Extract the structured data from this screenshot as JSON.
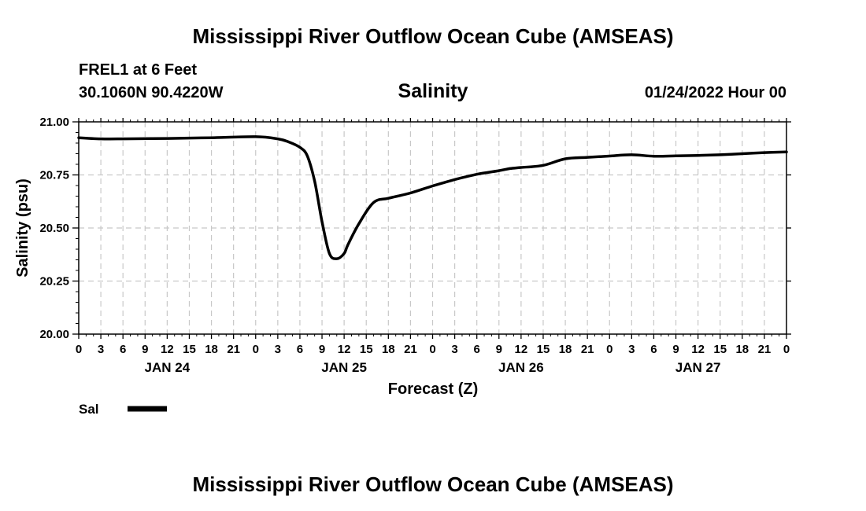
{
  "page": {
    "title": "Mississippi River Outflow Ocean Cube (AMSEAS)",
    "station": "FREL1 at 6 Feet",
    "location": "30.1060N  90.4220W",
    "issued": "01/24/2022 Hour 00",
    "footer_title": "Mississippi River Outflow Ocean Cube (AMSEAS)"
  },
  "chart_data": {
    "type": "line",
    "title": "Salinity",
    "xlabel": "Forecast (Z)",
    "ylabel": "Salinity (psu)",
    "ylim": [
      20.0,
      21.0
    ],
    "xlim_hours": [
      0,
      96
    ],
    "grid": true,
    "legend_position": "bottom-left",
    "y_ticks": [
      "20.00",
      "20.25",
      "20.50",
      "20.75",
      "21.00"
    ],
    "x_ticks": [
      "0",
      "3",
      "6",
      "9",
      "12",
      "15",
      "18",
      "21",
      "0",
      "3",
      "6",
      "9",
      "12",
      "15",
      "18",
      "21",
      "0",
      "3",
      "6",
      "9",
      "12",
      "15",
      "18",
      "21",
      "0",
      "3",
      "6",
      "9",
      "12",
      "15",
      "18",
      "21",
      "0"
    ],
    "date_labels": [
      {
        "label": "JAN 24",
        "at_hour": 12
      },
      {
        "label": "JAN 25",
        "at_hour": 36
      },
      {
        "label": "JAN 26",
        "at_hour": 60
      },
      {
        "label": "JAN 27",
        "at_hour": 84
      }
    ],
    "series": [
      {
        "name": "Sal",
        "color": "#000000",
        "x": [
          0,
          3,
          6,
          12,
          18,
          24,
          27,
          28.5,
          30,
          31,
          32,
          33,
          34,
          35,
          36,
          36.5,
          38,
          40,
          42,
          45,
          48,
          51,
          54,
          57,
          58.5,
          60,
          63,
          66,
          69,
          72,
          75,
          78,
          81,
          84,
          87,
          90,
          93,
          96
        ],
        "y": [
          20.925,
          20.92,
          20.92,
          20.922,
          20.925,
          20.93,
          20.92,
          20.905,
          20.88,
          20.84,
          20.72,
          20.53,
          20.38,
          20.355,
          20.38,
          20.42,
          20.52,
          20.62,
          20.64,
          20.665,
          20.698,
          20.728,
          20.753,
          20.77,
          20.78,
          20.785,
          20.795,
          20.826,
          20.833,
          20.839,
          20.845,
          20.838,
          20.84,
          20.842,
          20.845,
          20.85,
          20.855,
          20.858
        ]
      }
    ]
  }
}
